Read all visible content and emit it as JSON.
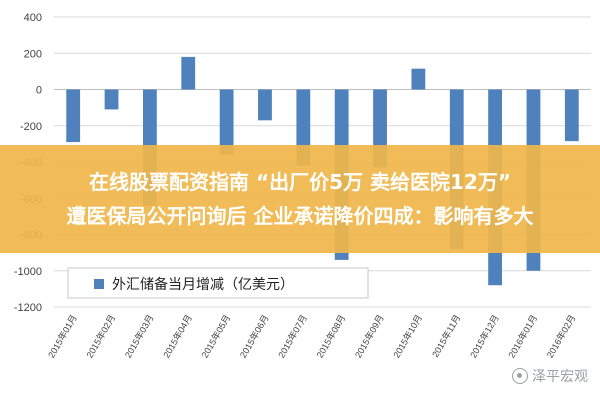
{
  "chart_data": {
    "type": "bar",
    "categories": [
      "2015年01月",
      "2015年02月",
      "2015年03月",
      "2015年04月",
      "2015年05月",
      "2015年06月",
      "2015年07月",
      "2015年08月",
      "2015年09月",
      "2015年10月",
      "2015年11月",
      "2015年12月",
      "2016年01月",
      "2016年02月"
    ],
    "series": [
      {
        "name": "外汇储备当月增减（亿美元）",
        "values": [
          -290,
          -110,
          -640,
          180,
          -360,
          -170,
          -420,
          -940,
          -430,
          115,
          -880,
          -1080,
          -1000,
          -285
        ]
      }
    ],
    "ylim": [
      -1200,
      400
    ],
    "yticks": [
      400,
      200,
      0,
      -200,
      -400,
      -600,
      -800,
      -1000,
      -1200
    ],
    "grid": true,
    "legend_position": "lower-left",
    "bar_color": "#4f81bd"
  },
  "banner": {
    "line1": "在线股票配资指南 “出厂价5万 卖给医院12万”",
    "line2": "遭医保局公开问询后 企业承诺降价四成：影响有多大"
  },
  "watermark": "泽平宏观"
}
